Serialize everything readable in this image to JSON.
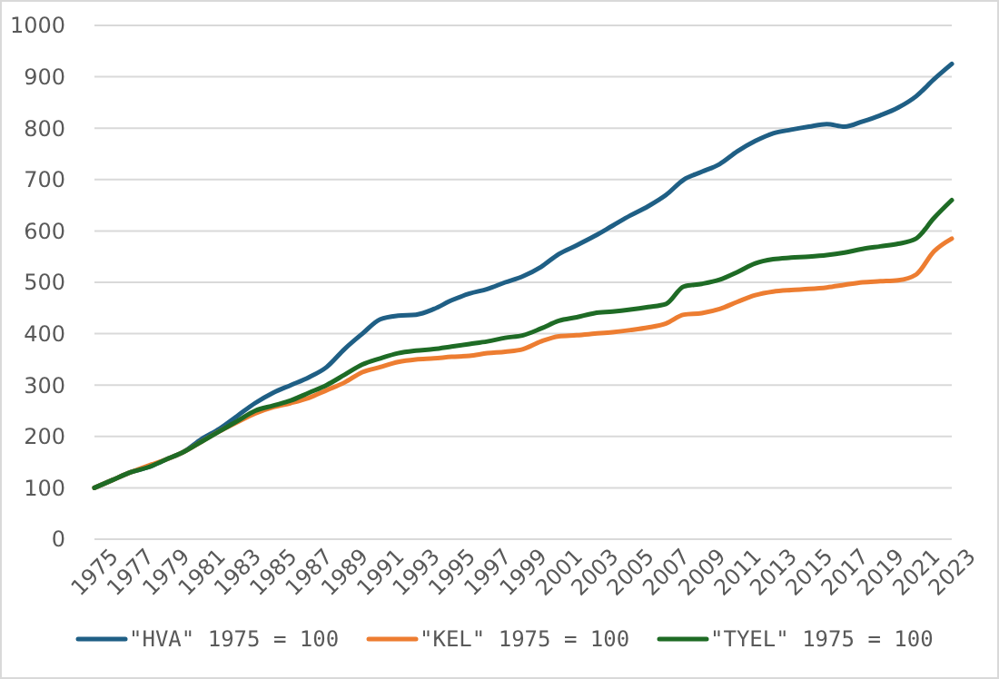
{
  "chart_data": {
    "type": "line",
    "x": [
      1975,
      1976,
      1977,
      1978,
      1979,
      1980,
      1981,
      1982,
      1983,
      1984,
      1985,
      1986,
      1987,
      1988,
      1989,
      1990,
      1991,
      1992,
      1993,
      1994,
      1995,
      1996,
      1997,
      1998,
      1999,
      2000,
      2001,
      2002,
      2003,
      2004,
      2005,
      2006,
      2007,
      2008,
      2009,
      2010,
      2011,
      2012,
      2013,
      2014,
      2015,
      2016,
      2017,
      2018,
      2019,
      2020,
      2021,
      2022,
      2023
    ],
    "xlim": [
      1975,
      2023
    ],
    "xticks": [
      1975,
      1977,
      1979,
      1981,
      1983,
      1985,
      1987,
      1989,
      1991,
      1993,
      1995,
      1997,
      1999,
      2001,
      2003,
      2005,
      2007,
      2009,
      2011,
      2013,
      2015,
      2017,
      2019,
      2021,
      2023
    ],
    "ylim": [
      0,
      1000
    ],
    "yticks": [
      0,
      100,
      200,
      300,
      400,
      500,
      600,
      700,
      800,
      900,
      1000
    ],
    "grid": "y",
    "legend": "bottom",
    "series": [
      {
        "name": "\"HVA\" 1975 = 100",
        "color": "#1f5f85",
        "values": [
          100,
          115,
          130,
          140,
          155,
          170,
          195,
          215,
          240,
          265,
          285,
          300,
          315,
          335,
          370,
          400,
          428,
          435,
          437,
          448,
          465,
          478,
          487,
          500,
          512,
          530,
          555,
          572,
          590,
          610,
          630,
          648,
          670,
          700,
          715,
          730,
          755,
          775,
          790,
          797,
          803,
          808,
          803,
          813,
          825,
          840,
          862,
          895,
          925
        ]
      },
      {
        "name": "\"KEL\" 1975 = 100",
        "color": "#ed7d31",
        "values": [
          100,
          115,
          130,
          143,
          155,
          170,
          190,
          210,
          228,
          245,
          257,
          265,
          275,
          290,
          305,
          325,
          335,
          345,
          350,
          352,
          355,
          357,
          362,
          365,
          370,
          385,
          395,
          397,
          400,
          403,
          407,
          412,
          420,
          437,
          440,
          448,
          462,
          475,
          482,
          485,
          487,
          490,
          495,
          500,
          502,
          504,
          515,
          560,
          585
        ]
      },
      {
        "name": "\"TYEL\" 1975 = 100",
        "color": "#1e6b25",
        "values": [
          100,
          115,
          130,
          140,
          155,
          170,
          190,
          210,
          230,
          250,
          260,
          270,
          285,
          300,
          320,
          340,
          352,
          362,
          367,
          370,
          375,
          380,
          385,
          392,
          397,
          410,
          425,
          432,
          440,
          443,
          447,
          452,
          458,
          492,
          497,
          505,
          520,
          537,
          545,
          548,
          550,
          553,
          558,
          565,
          570,
          575,
          585,
          625,
          660
        ]
      }
    ]
  }
}
